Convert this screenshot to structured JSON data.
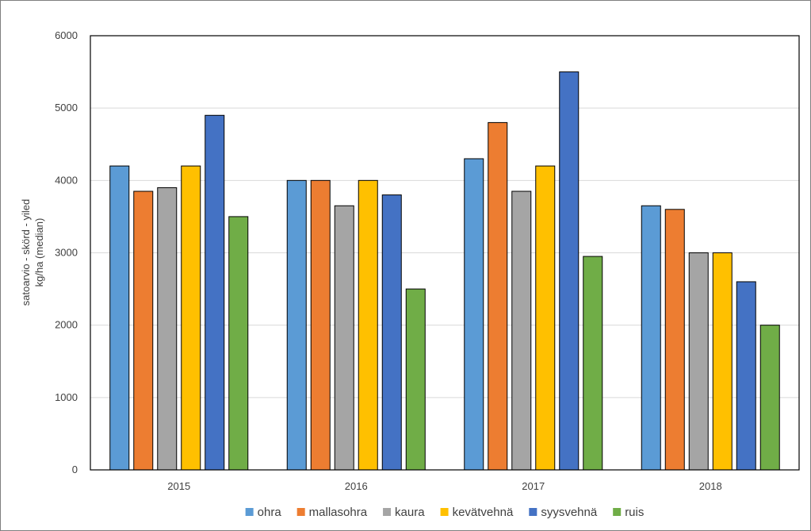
{
  "chart_data": {
    "type": "bar",
    "categories": [
      "2015",
      "2016",
      "2017",
      "2018"
    ],
    "series": [
      {
        "name": "ohra",
        "color": "#5b9bd5",
        "values": [
          4200,
          4000,
          4300,
          3650
        ]
      },
      {
        "name": "mallasohra",
        "color": "#ed7d31",
        "values": [
          3850,
          4000,
          4800,
          3600
        ]
      },
      {
        "name": "kaura",
        "color": "#a5a5a5",
        "values": [
          3900,
          3650,
          3850,
          3000
        ]
      },
      {
        "name": "kevätvehnä",
        "color": "#ffc000",
        "values": [
          4200,
          4000,
          4200,
          3000
        ]
      },
      {
        "name": "syysvehnä",
        "color": "#4472c4",
        "values": [
          4900,
          3800,
          5500,
          2600
        ]
      },
      {
        "name": "ruis",
        "color": "#70ad47",
        "values": [
          3500,
          2500,
          2950,
          2000
        ]
      }
    ],
    "ylim": [
      0,
      6000
    ],
    "yticks": [
      "0",
      "1000",
      "2000",
      "3000",
      "4000",
      "5000",
      "6000"
    ],
    "ylabel_line1": "satoarvio - skörd - yiled",
    "ylabel_line2": "kg/ha (median)",
    "xlabel": "",
    "grid": true,
    "legend_position": "bottom"
  }
}
